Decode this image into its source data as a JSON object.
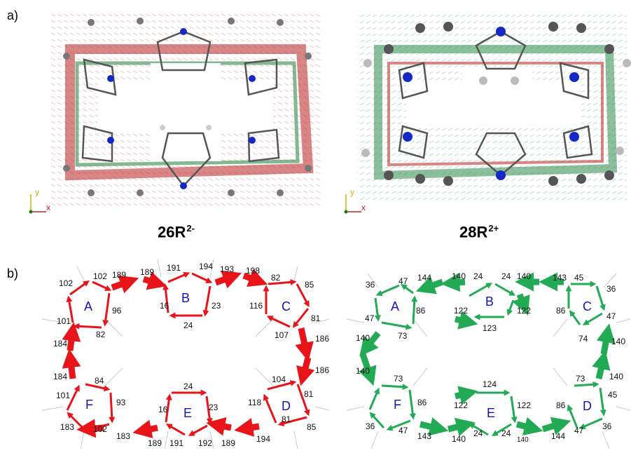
{
  "panels": {
    "a": {
      "label": "a)",
      "axes": {
        "y": "y",
        "x": "x"
      },
      "molecules": [
        {
          "base": "26R",
          "charge": "2-",
          "bond_colour": "#e52222"
        },
        {
          "base": "28R",
          "charge": "2+",
          "bond_colour": "#1faa55"
        }
      ]
    },
    "b": {
      "label": "b)",
      "left": {
        "ring_labels": [
          "A",
          "B",
          "C",
          "D",
          "E",
          "F"
        ],
        "arrow_colour": "#e8141a",
        "numbers": [
          "102",
          "102",
          "189",
          "189",
          "191",
          "194",
          "193",
          "198",
          "82",
          "85",
          "96",
          "16",
          "23",
          "116",
          "101",
          "82",
          "24",
          "107",
          "81",
          "186",
          "184",
          "184",
          "186",
          "84",
          "24",
          "104",
          "101",
          "93",
          "118",
          "81",
          "183",
          "102",
          "183",
          "16",
          "23",
          "81",
          "85",
          "189",
          "191",
          "192",
          "189",
          "194"
        ]
      },
      "right": {
        "ring_labels": [
          "A",
          "B",
          "C",
          "D",
          "E",
          "F"
        ],
        "arrow_colour": "#22aa55",
        "numbers": [
          "36",
          "47",
          "144",
          "140",
          "24",
          "24",
          "140",
          "143",
          "45",
          "36",
          "86",
          "122",
          "122",
          "86",
          "47",
          "123",
          "73",
          "74",
          "140",
          "140",
          "140",
          "47",
          "73",
          "124",
          "73",
          "140",
          "86",
          "122",
          "122",
          "86",
          "45",
          "36",
          "47",
          "143",
          "140",
          "24",
          "24",
          "140",
          "144",
          "47",
          "36"
        ]
      }
    }
  }
}
